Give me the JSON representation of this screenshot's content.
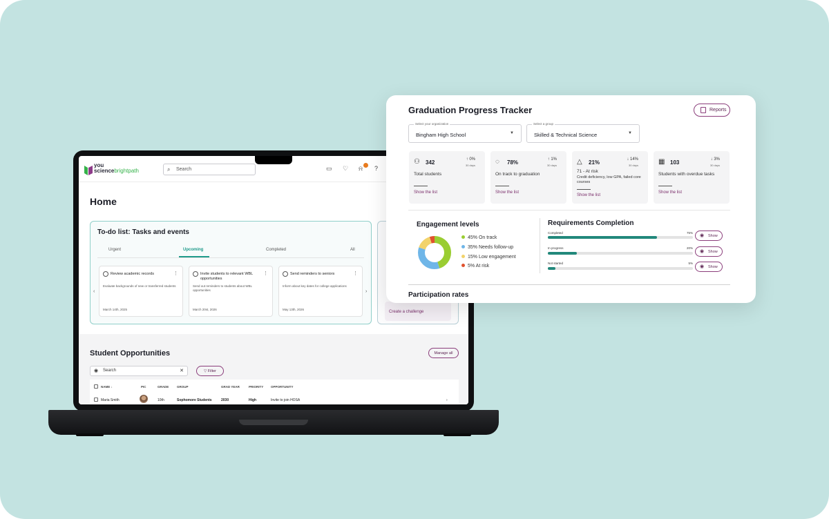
{
  "colors": {
    "background": "#c3e3e1",
    "accent_teal": "#22887b",
    "accent_plum": "#8a3c7a",
    "donut_on_track": "#9acd32",
    "donut_follow_up": "#6fb6e8",
    "donut_low": "#f2d36b",
    "donut_at_risk": "#e0522e"
  },
  "app": {
    "logo_top": "you",
    "logo_brand": "science",
    "logo_product": "brightpath",
    "search_placeholder": "Search",
    "icons": [
      "chat-icon",
      "heart-icon",
      "bell-icon",
      "help-icon"
    ]
  },
  "home": {
    "title": "Home",
    "todo": {
      "title": "To-do list: Tasks and events",
      "tabs": [
        "Urgent",
        "Upcoming",
        "Completed",
        "All"
      ],
      "active_tab": "Upcoming",
      "tasks": [
        {
          "title": "Review academic records",
          "desc": "Evaluate backgrounds of new or transferred students",
          "date": "March 14th, 2025"
        },
        {
          "title": "Invite students to relevant WBL opportunities",
          "desc": "Send out reminders to students about WBL opportunities",
          "date": "March 20st, 2026"
        },
        {
          "title": "Send reminders to seniors",
          "desc": "Inform about key dates for college applications",
          "date": "May 13th, 2026"
        }
      ]
    },
    "side_card": {
      "cta": "Create a challenge"
    },
    "opportunities": {
      "title": "Student Opportunities",
      "manage_label": "Manage all",
      "search_value": "Search",
      "filter_label": "Filter",
      "columns": [
        "NAME ↓",
        "PIC",
        "GRADE",
        "GROUP",
        "GRAD YEAR",
        "PRIORITY",
        "OPPORTUNITY"
      ],
      "rows": [
        {
          "name": "Maria Smith",
          "grade": "10th",
          "group": "Sophomore Students",
          "grad_year": "2030",
          "priority": "High",
          "opportunity": "Invite to join HOSA"
        }
      ]
    }
  },
  "tracker": {
    "title": "Graduation Progress Tracker",
    "reports_label": "Reports",
    "org_label": "Select your organization",
    "org_value": "Bingham High School",
    "group_label": "Select a group",
    "group_value": "Skilled & Technical Science",
    "stats": [
      {
        "icon": "users-icon",
        "value": "342",
        "change": "↑ 0%",
        "change_sub": "30 days",
        "label": "Total students",
        "link": "Show the list"
      },
      {
        "icon": "progress-icon",
        "value": "78%",
        "change": "↑ 1%",
        "change_sub": "30 days",
        "label": "On track to graduation",
        "link": "Show the list"
      },
      {
        "icon": "warning-icon",
        "value": "21%",
        "change": "↓ 14%",
        "change_sub": "30 days",
        "label": "71 - At risk",
        "label2": "Credit deficiency, low GPA, failed core courses",
        "link": "Show the list"
      },
      {
        "icon": "calendar-icon",
        "value": "103",
        "change": "↓ 3%",
        "change_sub": "30 days",
        "label": "Students with overdue tasks",
        "link": "Show the list"
      }
    ],
    "engagement": {
      "title": "Engagement levels",
      "items": [
        {
          "label": "45% On track",
          "pct": 45,
          "color": "#9acd32"
        },
        {
          "label": "35% Needs follow-up",
          "pct": 35,
          "color": "#6fb6e8"
        },
        {
          "label": "15% Low engagement",
          "pct": 15,
          "color": "#f2d36b"
        },
        {
          "label": "5% At risk",
          "pct": 5,
          "color": "#e0522e"
        }
      ]
    },
    "requirements": {
      "title": "Requirements Completion",
      "show_label": "Show",
      "items": [
        {
          "label": "Completed",
          "pct_label": "75%",
          "pct": 75
        },
        {
          "label": "In progress",
          "pct_label": "20%",
          "pct": 20
        },
        {
          "label": "Not started",
          "pct_label": "5%",
          "pct": 5
        }
      ]
    },
    "participation_title": "Participation rates"
  }
}
